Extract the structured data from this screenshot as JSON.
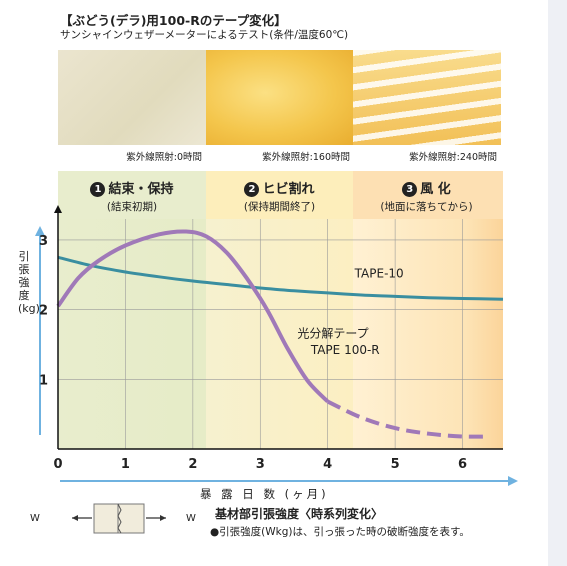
{
  "header": {
    "title": "【ぶどう(デラ)用100-Rのテープ変化】",
    "subtitle": "サンシャインウェザーメーターによるテスト(条件/温度60℃)"
  },
  "photos": [
    {
      "caption": "紫外線照射:0時間"
    },
    {
      "caption": "紫外線照射:160時間"
    },
    {
      "caption": "紫外線照射:240時間"
    }
  ],
  "phases": [
    {
      "number": "1",
      "title": "結束・保持",
      "subtitle": "(結束初期)"
    },
    {
      "number": "2",
      "title": "ヒビ割れ",
      "subtitle": "(保持期間終了)"
    },
    {
      "number": "3",
      "title": "風 化",
      "subtitle": "(地面に落ちてから)"
    }
  ],
  "colors": {
    "phase1_bg": "#e8edcd",
    "phase2_bg": "#fdeebb",
    "phase3_bg": "#fde0b3",
    "tape10_line": "#3a8ea0",
    "tape100r_line": "#a079b8",
    "axis_arrow": "#6fb2e0"
  },
  "chart_data": {
    "type": "line",
    "title": "",
    "xlabel": "暴 露 日 数 (ヶ月)",
    "ylabel": "引張強度(kg)",
    "xlim": [
      0,
      6.6
    ],
    "ylim": [
      0,
      3.3
    ],
    "x_ticks": [
      "0",
      "1",
      "2",
      "3",
      "4",
      "5",
      "6"
    ],
    "y_ticks": [
      "1",
      "2",
      "3"
    ],
    "grid": true,
    "series": [
      {
        "name": "TAPE-10",
        "x": [
          0,
          0.5,
          1,
          1.5,
          2,
          2.5,
          3,
          3.5,
          4,
          4.5,
          5,
          5.5,
          6,
          6.6
        ],
        "y": [
          2.75,
          2.63,
          2.54,
          2.47,
          2.41,
          2.36,
          2.31,
          2.27,
          2.24,
          2.21,
          2.19,
          2.17,
          2.16,
          2.15
        ]
      },
      {
        "name": "光分解テープ TAPE 100-R",
        "x": [
          0,
          0.3,
          0.6,
          1,
          1.5,
          1.9,
          2.2,
          2.5,
          2.8,
          3.1,
          3.4,
          3.7,
          4.0,
          4.5,
          5,
          5.5,
          6,
          6.4
        ],
        "y": [
          2.05,
          2.45,
          2.7,
          2.92,
          3.08,
          3.12,
          3.05,
          2.82,
          2.45,
          2.0,
          1.45,
          0.98,
          0.68,
          0.45,
          0.3,
          0.22,
          0.18,
          0.18
        ],
        "dashed_from_x": 4.0
      }
    ],
    "annotations": [
      {
        "text": "TAPE-10"
      },
      {
        "text": "光分解テープ"
      },
      {
        "text": "TAPE 100-R"
      }
    ]
  },
  "footer": {
    "w_left": "W",
    "w_right": "W",
    "note_title": "基材部引張強度〈時系列変化〉",
    "note_text": "●引張強度(Wkg)は、引っ張った時の破断強度を表す。"
  }
}
